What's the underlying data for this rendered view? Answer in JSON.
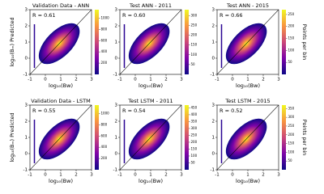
{
  "chart_data": [
    {
      "type": "hist2d",
      "title": "Validation Data - ANN",
      "annotation": "R = 0.61",
      "x_label": "log₁₀(Bw)",
      "y_label": "log₁₀(Bₘ) Predicted",
      "xlim": [
        -1,
        3
      ],
      "ylim": [
        -1,
        3
      ],
      "xticks": [
        -1,
        0,
        1,
        2,
        3
      ],
      "yticks": [
        -1,
        0,
        1,
        2,
        3
      ],
      "colormap": "plasma",
      "clim": [
        0,
        1150
      ],
      "cticks": [
        200,
        400,
        600,
        800,
        1000
      ]
    },
    {
      "type": "hist2d",
      "title": "Test ANN - 2011",
      "annotation": "R = 0.60",
      "x_label": "log₁₀(Bw)",
      "xlim": [
        -1,
        3
      ],
      "ylim": [
        -1,
        3
      ],
      "xticks": [
        -1,
        0,
        1,
        2,
        3
      ],
      "yticks": [
        -1,
        0,
        1,
        2,
        3
      ],
      "colormap": "plasma",
      "clim": [
        0,
        330
      ],
      "cticks": [
        50,
        100,
        150,
        200,
        250,
        300
      ]
    },
    {
      "type": "hist2d",
      "title": "Test ANN - 2015",
      "annotation": "R = 0.66",
      "x_label": "log₁₀(Bw)",
      "colorbar_label": "Points per bin",
      "xlim": [
        -1,
        3
      ],
      "ylim": [
        -1,
        3
      ],
      "xticks": [
        -1,
        0,
        1,
        2,
        3
      ],
      "yticks": [
        -1,
        0,
        1,
        2,
        3
      ],
      "colormap": "plasma",
      "clim": [
        0,
        270
      ],
      "cticks": [
        50,
        100,
        150,
        200,
        250
      ]
    },
    {
      "type": "hist2d",
      "title": "Validation Data - LSTM",
      "annotation": "R = 0.55",
      "x_label": "log₁₀(Bw)",
      "y_label": "log₁₀(Bₘ) Predicted",
      "xlim": [
        -1,
        3
      ],
      "ylim": [
        -1,
        3
      ],
      "xticks": [
        -1,
        0,
        1,
        2,
        3
      ],
      "yticks": [
        -1,
        0,
        1,
        2,
        3
      ],
      "colormap": "plasma",
      "clim": [
        0,
        1150
      ],
      "cticks": [
        200,
        400,
        600,
        800,
        1000
      ]
    },
    {
      "type": "hist2d",
      "title": "Test LSTM - 2011",
      "annotation": "R = 0.54",
      "x_label": "log₁₀(Bw)",
      "xlim": [
        -1,
        3
      ],
      "ylim": [
        -1,
        3
      ],
      "xticks": [
        -1,
        0,
        1,
        2,
        3
      ],
      "yticks": [
        -1,
        0,
        1,
        2,
        3
      ],
      "colormap": "plasma",
      "clim": [
        0,
        470
      ],
      "cticks": [
        50,
        100,
        150,
        200,
        250,
        300,
        350,
        400,
        450
      ]
    },
    {
      "type": "hist2d",
      "title": "Test LSTM - 2015",
      "annotation": "R = 0.52",
      "x_label": "log₁₀(Bw)",
      "colorbar_label": "Points per bin",
      "xlim": [
        -1,
        3
      ],
      "ylim": [
        -1,
        3
      ],
      "xticks": [
        -1,
        0,
        1,
        2,
        3
      ],
      "yticks": [
        -1,
        0,
        1,
        2,
        3
      ],
      "colormap": "plasma",
      "clim": [
        0,
        370
      ],
      "cticks": [
        50,
        100,
        150,
        200,
        250,
        300,
        350
      ]
    }
  ]
}
